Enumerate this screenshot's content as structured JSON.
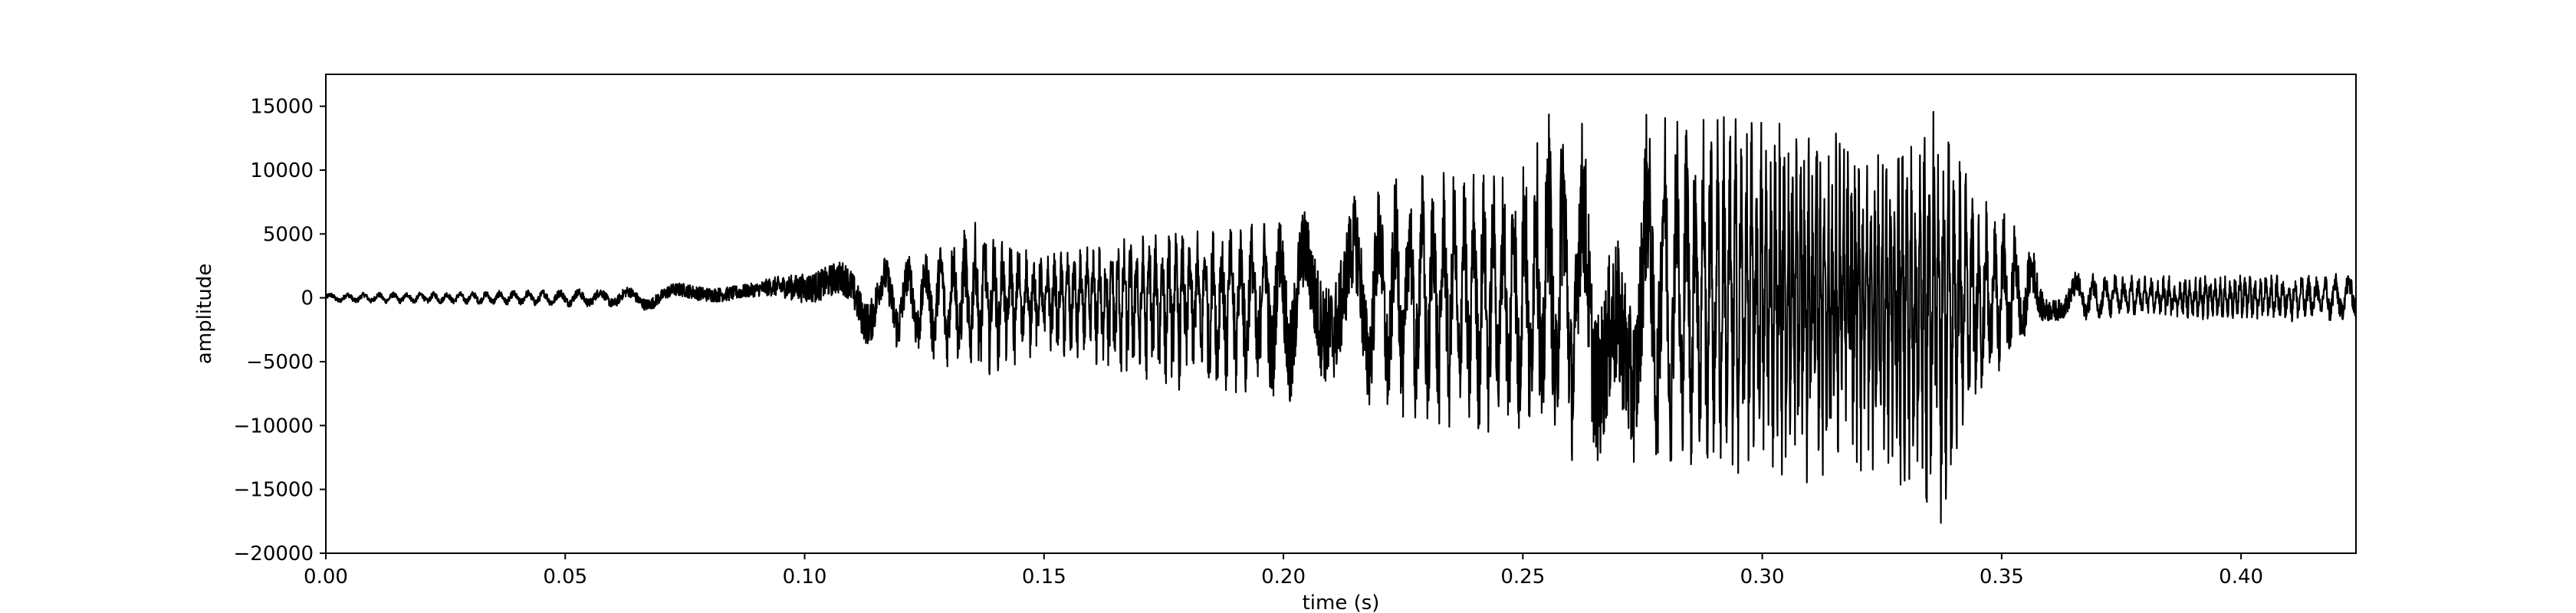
{
  "chart_data": {
    "type": "line",
    "title": "",
    "xlabel": "time (s)",
    "ylabel": "amplitude",
    "xlim": [
      0.0,
      0.424
    ],
    "ylim": [
      -20000,
      17500
    ],
    "grid": false,
    "line_color": "#000000",
    "x_ticks": [
      0.0,
      0.05,
      0.1,
      0.15,
      0.2,
      0.25,
      0.3,
      0.35,
      0.4
    ],
    "x_tick_labels": [
      "0.00",
      "0.05",
      "0.10",
      "0.15",
      "0.20",
      "0.25",
      "0.30",
      "0.35",
      "0.40"
    ],
    "y_ticks": [
      -20000,
      -15000,
      -10000,
      -5000,
      0,
      5000,
      10000,
      15000
    ],
    "y_tick_labels": [
      "−20000",
      "−15000",
      "−10000",
      "−5000",
      "0",
      "5000",
      "10000",
      "15000"
    ],
    "series": [
      {
        "envelope": {
          "t": [
            0.0,
            0.03,
            0.06,
            0.075,
            0.09,
            0.1,
            0.11,
            0.125,
            0.135,
            0.15,
            0.17,
            0.185,
            0.2,
            0.215,
            0.23,
            0.245,
            0.255,
            0.265,
            0.28,
            0.295,
            0.31,
            0.325,
            0.337,
            0.345,
            0.352,
            0.36,
            0.38,
            0.4,
            0.424
          ],
          "upper": [
            400,
            500,
            800,
            1200,
            1200,
            2500,
            3000,
            3500,
            6000,
            3500,
            5000,
            5500,
            6500,
            8000,
            10500,
            10000,
            15500,
            13500,
            15500,
            14500,
            14500,
            12000,
            15500,
            8000,
            6500,
            2200,
            1800,
            1800,
            2000
          ],
          "lower": [
            -400,
            -500,
            -800,
            -1200,
            -1500,
            -3000,
            -3500,
            -4500,
            -6500,
            -4500,
            -7000,
            -7500,
            -9500,
            -8500,
            -10500,
            -11000,
            -12500,
            -13000,
            -13000,
            -14000,
            -14800,
            -14000,
            -18500,
            -9000,
            -5000,
            -1800,
            -1600,
            -1800,
            -2000
          ]
        }
      }
    ]
  }
}
